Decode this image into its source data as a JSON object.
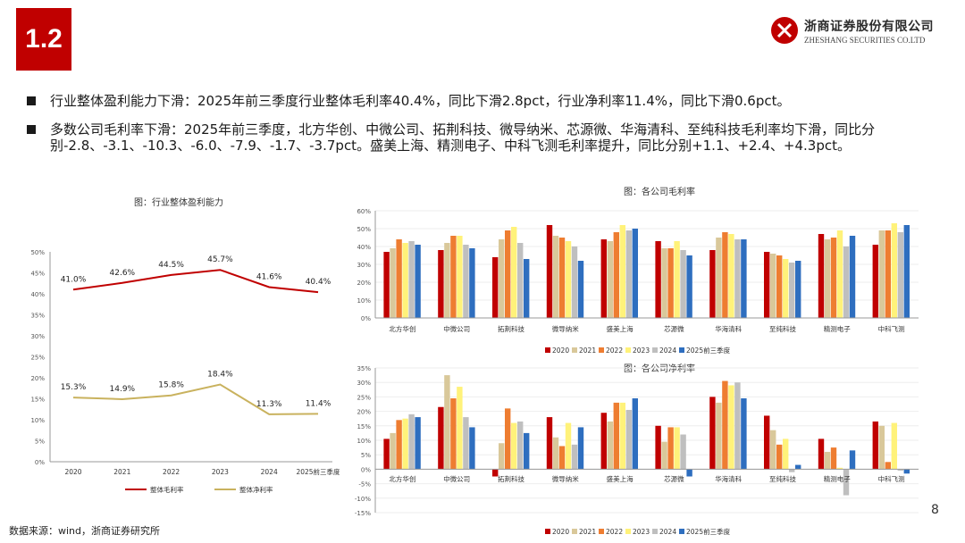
{
  "header": {
    "section_number": "1.2"
  },
  "logo": {
    "name_cn": "浙商证券股份有限公司",
    "name_en": "ZHESHANG SECURITIES CO.LTD",
    "brand_color": "#c00000"
  },
  "bullets": [
    "行业整体盈利能力下滑：2025年前三季度行业整体毛利率40.4%，同比下滑2.8pct，行业净利率11.4%，同比下滑0.6pct。",
    "多数公司毛利率下滑：2025年前三季度，北方华创、中微公司、拓荆科技、微导纳米、芯源微、华海清科、至纯科技毛利率均下滑，同比分别-2.8、-3.1、-10.3、-6.0、-7.9、-1.7、-3.7pct。盛美上海、精测电子、中科飞测毛利率提升，同比分别+1.1、+2.4、+4.3pct。"
  ],
  "footer": {
    "source": "数据来源：wind，浙商证券研究所",
    "page_number": "8"
  },
  "chart_data": [
    {
      "type": "line",
      "title": "图：行业整体盈利能力",
      "categories": [
        "2020",
        "2021",
        "2022",
        "2023",
        "2024",
        "2025前三季度"
      ],
      "series": [
        {
          "name": "整体毛利率",
          "values": [
            41.0,
            42.6,
            44.5,
            45.7,
            41.6,
            40.4
          ],
          "color": "#c00000"
        },
        {
          "name": "整体净利率",
          "values": [
            15.3,
            14.9,
            15.8,
            18.4,
            11.3,
            11.4
          ],
          "color": "#c9b25e"
        }
      ],
      "data_labels": {
        "整体毛利率": [
          "41.0%",
          "42.6%",
          "44.5%",
          "45.7%",
          "41.6%",
          "40.4%"
        ],
        "整体净利率": [
          "15.3%",
          "14.9%",
          "15.8%",
          "18.4%",
          "11.3%",
          "11.4%"
        ]
      },
      "ylim": [
        0,
        50
      ],
      "yticks": [
        "0%",
        "5%",
        "10%",
        "15%",
        "20%",
        "25%",
        "30%",
        "35%",
        "40%",
        "45%",
        "50%"
      ],
      "legend_position": "bottom"
    },
    {
      "type": "bar",
      "title": "图：各公司毛利率",
      "categories": [
        "北方华创",
        "中微公司",
        "拓荆科技",
        "微导纳米",
        "盛美上海",
        "芯源微",
        "华海清科",
        "至纯科技",
        "精测电子",
        "中科飞测"
      ],
      "series": [
        {
          "name": "2020",
          "color": "#c00000",
          "values": [
            37,
            38,
            34,
            52,
            44,
            43,
            38,
            37,
            47,
            41
          ]
        },
        {
          "name": "2021",
          "color": "#d9c89a",
          "values": [
            39,
            42,
            44,
            46,
            43,
            39,
            45,
            36,
            44,
            49
          ]
        },
        {
          "name": "2022",
          "color": "#ee7d31",
          "values": [
            44,
            46,
            49,
            45,
            48,
            39,
            48,
            35,
            45,
            49
          ]
        },
        {
          "name": "2023",
          "color": "#fff27a",
          "values": [
            42,
            46,
            51,
            43,
            52,
            43,
            47,
            33,
            49,
            53
          ]
        },
        {
          "name": "2024",
          "color": "#bfbfbf",
          "values": [
            43,
            41,
            42,
            40,
            49,
            38,
            44,
            31,
            40,
            48
          ]
        },
        {
          "name": "2025前三季度",
          "color": "#2e6ebf",
          "values": [
            41,
            39,
            33,
            32,
            50,
            35,
            44,
            32,
            46,
            52
          ]
        }
      ],
      "ylim": [
        0,
        60
      ],
      "yticks": [
        "0%",
        "10%",
        "20%",
        "30%",
        "40%",
        "50%",
        "60%"
      ],
      "legend_position": "bottom"
    },
    {
      "type": "bar",
      "title": "图：各公司净利率",
      "categories": [
        "北方华创",
        "中微公司",
        "拓荆科技",
        "微导纳米",
        "盛美上海",
        "芯源微",
        "华海清科",
        "至纯科技",
        "精测电子",
        "中科飞测"
      ],
      "series": [
        {
          "name": "2020",
          "color": "#c00000",
          "values": [
            10.5,
            21.5,
            -2.5,
            18,
            19.5,
            15,
            25,
            18.5,
            10.5,
            16.5
          ]
        },
        {
          "name": "2021",
          "color": "#d9c89a",
          "values": [
            12.5,
            32.5,
            9,
            11,
            16.5,
            9.5,
            23,
            13.5,
            6,
            15
          ]
        },
        {
          "name": "2022",
          "color": "#ee7d31",
          "values": [
            17,
            24.5,
            21,
            8,
            23,
            14.5,
            30.5,
            8.5,
            7.5,
            2.5
          ]
        },
        {
          "name": "2023",
          "color": "#fff27a",
          "values": [
            17.5,
            28.5,
            16,
            16,
            23,
            14.5,
            29,
            10.5,
            0.5,
            16
          ]
        },
        {
          "name": "2024",
          "color": "#bfbfbf",
          "values": [
            19,
            18,
            16.5,
            8.5,
            20.5,
            12,
            30,
            -1,
            -9,
            -0.5
          ]
        },
        {
          "name": "2025前三季度",
          "color": "#2e6ebf",
          "values": [
            18,
            14.5,
            12.5,
            14.5,
            24.5,
            -2.5,
            24.5,
            1.5,
            6.5,
            -1.5
          ]
        }
      ],
      "ylim": [
        -15,
        35
      ],
      "yticks": [
        "-15%",
        "-10%",
        "-5%",
        "0%",
        "5%",
        "10%",
        "15%",
        "20%",
        "25%",
        "30%",
        "35%"
      ],
      "legend_position": "bottom"
    }
  ]
}
